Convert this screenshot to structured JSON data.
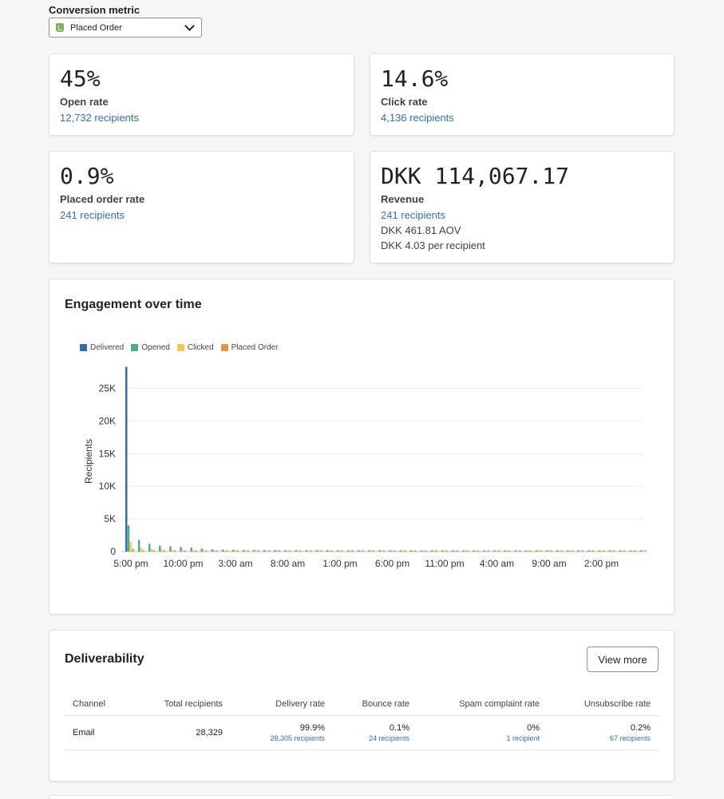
{
  "conversion": {
    "label": "Conversion metric",
    "selected": "Placed Order",
    "icon": "shopify-bag-icon"
  },
  "stats": [
    {
      "value": "45%",
      "label": "Open rate",
      "link": "12,732 recipients"
    },
    {
      "value": "14.6%",
      "label": "Click rate",
      "link": "4,136 recipients"
    },
    {
      "value": "0.9%",
      "label": "Placed order rate",
      "link": "241 recipients"
    },
    {
      "value": "DKK 114,067.17",
      "label": "Revenue",
      "link": "241 recipients",
      "sub1": "DKK 461.81 AOV",
      "sub2": "DKK 4.03 per recipient"
    }
  ],
  "engagement": {
    "title": "Engagement over time"
  },
  "chart_data": {
    "type": "bar",
    "ylabel": "Recipients",
    "xlabel": "",
    "ylim": [
      0,
      28000
    ],
    "yticks": [
      0,
      5000,
      10000,
      15000,
      20000,
      25000
    ],
    "ytick_labels": [
      "0",
      "5K",
      "10K",
      "15K",
      "20K",
      "25K"
    ],
    "xtick_labels": [
      "5:00 pm",
      "10:00 pm",
      "3:00 am",
      "8:00 am",
      "1:00 pm",
      "6:00 pm",
      "11:00 pm",
      "4:00 am",
      "9:00 am",
      "2:00 pm"
    ],
    "xtick_hours": [
      0,
      5,
      10,
      15,
      20,
      25,
      30,
      35,
      40,
      45
    ],
    "x_hours": [
      0,
      1,
      2,
      3,
      4,
      5,
      6,
      7,
      8,
      9,
      10,
      11,
      12,
      13,
      14,
      15,
      16,
      17,
      18,
      19,
      20,
      21,
      22,
      23,
      24,
      25,
      26,
      27,
      28,
      29,
      30,
      31,
      32,
      33,
      34,
      35,
      36,
      37,
      38,
      39,
      40,
      41,
      42,
      43,
      44,
      45,
      46,
      47,
      48,
      49
    ],
    "series": [
      {
        "name": "Delivered",
        "color": "#2f6db5",
        "values": [
          28300,
          0,
          0,
          0,
          0,
          0,
          0,
          0,
          0,
          0,
          0,
          0,
          0,
          0,
          0,
          0,
          0,
          0,
          0,
          0,
          0,
          0,
          0,
          0,
          0,
          0,
          0,
          0,
          0,
          0,
          0,
          0,
          0,
          0,
          0,
          0,
          0,
          0,
          0,
          0,
          0,
          0,
          0,
          0,
          0,
          0,
          0,
          0,
          0,
          0
        ]
      },
      {
        "name": "Opened",
        "color": "#4caf8c",
        "values": [
          4000,
          1800,
          1200,
          900,
          800,
          700,
          600,
          450,
          350,
          300,
          280,
          260,
          250,
          240,
          230,
          220,
          220,
          210,
          210,
          200,
          200,
          200,
          200,
          190,
          190,
          190,
          180,
          180,
          180,
          180,
          170,
          170,
          170,
          170,
          160,
          160,
          160,
          160,
          150,
          150,
          150,
          150,
          150,
          140,
          140,
          140,
          140,
          140,
          140,
          140
        ]
      },
      {
        "name": "Clicked",
        "color": "#f2c94c",
        "values": [
          1500,
          550,
          380,
          280,
          230,
          200,
          170,
          140,
          120,
          110,
          100,
          95,
          90,
          85,
          80,
          80,
          75,
          75,
          70,
          70,
          70,
          65,
          65,
          65,
          60,
          60,
          60,
          60,
          55,
          55,
          55,
          55,
          50,
          50,
          50,
          50,
          50,
          45,
          45,
          45,
          45,
          45,
          45,
          40,
          40,
          40,
          40,
          40,
          40,
          40
        ]
      },
      {
        "name": "Placed Order",
        "color": "#ef8f3a",
        "values": [
          400,
          200,
          150,
          120,
          100,
          90,
          80,
          70,
          60,
          55,
          50,
          45,
          45,
          40,
          40,
          40,
          35,
          35,
          35,
          30,
          30,
          30,
          30,
          30,
          30,
          25,
          25,
          25,
          25,
          25,
          25,
          25,
          20,
          20,
          20,
          20,
          20,
          20,
          20,
          20,
          20,
          20,
          20,
          20,
          20,
          20,
          20,
          20,
          20,
          20
        ]
      }
    ]
  },
  "deliverability": {
    "title": "Deliverability",
    "view_more": "View more",
    "columns": [
      "Channel",
      "Total recipients",
      "Delivery rate",
      "Bounce rate",
      "Spam complaint rate",
      "Unsubscribe rate"
    ],
    "row": {
      "channel": "Email",
      "total": "28,329",
      "delivery_pct": "99.9%",
      "delivery_rec": "28,305 recipients",
      "bounce_pct": "0.1%",
      "bounce_rec": "24 recipients",
      "spam_pct": "0%",
      "spam_rec": "1 recipient",
      "unsub_pct": "0.2%",
      "unsub_rec": "67 recipients"
    }
  }
}
